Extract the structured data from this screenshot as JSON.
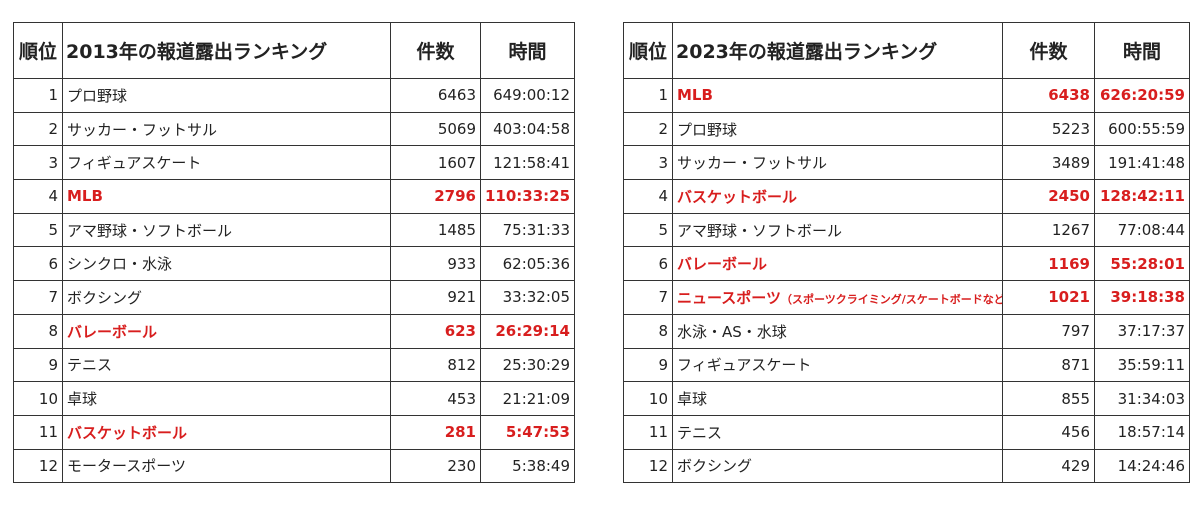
{
  "accent_color": "#d81e1e",
  "tables": [
    {
      "headers": {
        "rank": "順位",
        "title": "2013年の報道露出ランキング",
        "count": "件数",
        "time": "時間"
      },
      "rows": [
        {
          "rank": "1",
          "name": "プロ野球",
          "count": "6463",
          "time": "649:00:12",
          "highlight": false
        },
        {
          "rank": "2",
          "name": "サッカー・フットサル",
          "count": "5069",
          "time": "403:04:58",
          "highlight": false
        },
        {
          "rank": "3",
          "name": "フィギュアスケート",
          "count": "1607",
          "time": "121:58:41",
          "highlight": false
        },
        {
          "rank": "4",
          "name": "MLB",
          "count": "2796",
          "time": "110:33:25",
          "highlight": true
        },
        {
          "rank": "5",
          "name": "アマ野球・ソフトボール",
          "count": "1485",
          "time": "75:31:33",
          "highlight": false
        },
        {
          "rank": "6",
          "name": "シンクロ・水泳",
          "count": "933",
          "time": "62:05:36",
          "highlight": false
        },
        {
          "rank": "7",
          "name": "ボクシング",
          "count": "921",
          "time": "33:32:05",
          "highlight": false
        },
        {
          "rank": "8",
          "name": "バレーボール",
          "count": "623",
          "time": "26:29:14",
          "highlight": true
        },
        {
          "rank": "9",
          "name": "テニス",
          "count": "812",
          "time": "25:30:29",
          "highlight": false
        },
        {
          "rank": "10",
          "name": "卓球",
          "count": "453",
          "time": "21:21:09",
          "highlight": false
        },
        {
          "rank": "11",
          "name": "バスケットボール",
          "count": "281",
          "time": "5:47:53",
          "highlight": true
        },
        {
          "rank": "12",
          "name": "モータースポーツ",
          "count": "230",
          "time": "5:38:49",
          "highlight": false
        }
      ]
    },
    {
      "headers": {
        "rank": "順位",
        "title": "2023年の報道露出ランキング",
        "count": "件数",
        "time": "時間"
      },
      "rows": [
        {
          "rank": "1",
          "name": "MLB",
          "count": "6438",
          "time": "626:20:59",
          "highlight": true
        },
        {
          "rank": "2",
          "name": "プロ野球",
          "count": "5223",
          "time": "600:55:59",
          "highlight": false
        },
        {
          "rank": "3",
          "name": "サッカー・フットサル",
          "count": "3489",
          "time": "191:41:48",
          "highlight": false
        },
        {
          "rank": "4",
          "name": "バスケットボール",
          "count": "2450",
          "time": "128:42:11",
          "highlight": true
        },
        {
          "rank": "5",
          "name": "アマ野球・ソフトボール",
          "count": "1267",
          "time": "77:08:44",
          "highlight": false
        },
        {
          "rank": "6",
          "name": "バレーボール",
          "count": "1169",
          "time": "55:28:01",
          "highlight": true
        },
        {
          "rank": "7",
          "name": "ニュースポーツ",
          "note": "（スポーツクライミング/スケートボードなど）",
          "count": "1021",
          "time": "39:18:38",
          "highlight": true
        },
        {
          "rank": "8",
          "name": "水泳・AS・水球",
          "count": "797",
          "time": "37:17:37",
          "highlight": false
        },
        {
          "rank": "9",
          "name": "フィギュアスケート",
          "count": "871",
          "time": "35:59:11",
          "highlight": false
        },
        {
          "rank": "10",
          "name": "卓球",
          "count": "855",
          "time": "31:34:03",
          "highlight": false
        },
        {
          "rank": "11",
          "name": "テニス",
          "count": "456",
          "time": "18:57:14",
          "highlight": false
        },
        {
          "rank": "12",
          "name": "ボクシング",
          "count": "429",
          "time": "14:24:46",
          "highlight": false
        }
      ]
    }
  ]
}
